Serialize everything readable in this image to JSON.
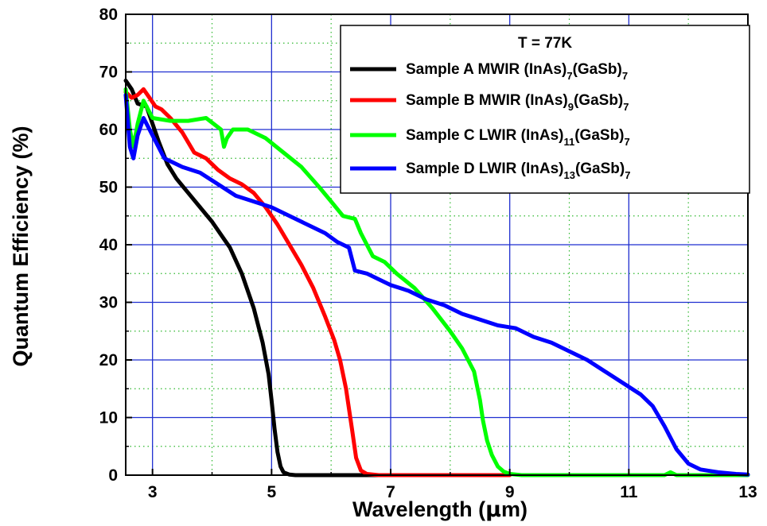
{
  "chart_data": {
    "type": "line",
    "xlabel_main": "Wavelength (",
    "xlabel_mu": "μ",
    "xlabel_end": "m)",
    "ylabel": "Quantum Efficiency (%)",
    "xlim": [
      2.55,
      13.0
    ],
    "ylim": [
      0,
      80
    ],
    "x_ticks": [
      3,
      5,
      7,
      9,
      11,
      13
    ],
    "x_tick_labels": [
      "3",
      "5",
      "7",
      "9",
      "11",
      "13"
    ],
    "y_ticks": [
      0,
      10,
      20,
      30,
      40,
      50,
      60,
      70,
      80
    ],
    "y_tick_labels": [
      "0",
      "10",
      "20",
      "30",
      "40",
      "50",
      "60",
      "70",
      "80"
    ],
    "x_major_grid": [
      3,
      5,
      7,
      9,
      11
    ],
    "x_minor_grid": [
      4,
      6,
      8,
      10,
      12
    ],
    "y_major_grid": [
      10,
      20,
      30,
      40,
      50,
      60,
      70
    ],
    "y_minor_grid": [
      5,
      15,
      25,
      35,
      45,
      55,
      65,
      75
    ],
    "grid_major_color": "#1f2fd0",
    "grid_minor_color": "#2fb82f",
    "legend": {
      "placement": "top-right",
      "title": "T = 77K",
      "entries": [
        {
          "prefix": "Sample A MWIR (InAs)",
          "sub1": "7",
          "mid": "(GaSb)",
          "sub2": "7"
        },
        {
          "prefix": "Sample B MWIR (InAs)",
          "sub1": "9",
          "mid": "(GaSb)",
          "sub2": "7"
        },
        {
          "prefix": "Sample C LWIR (InAs)",
          "sub1": "11",
          "mid": "(GaSb)",
          "sub2": "7"
        },
        {
          "prefix": "Sample D LWIR (InAs)",
          "sub1": "13",
          "mid": "(GaSb)",
          "sub2": "7"
        }
      ]
    },
    "series": [
      {
        "name": "Sample A MWIR (InAs)7(GaSb)7",
        "color": "#000000",
        "x": [
          2.55,
          2.65,
          2.75,
          2.9,
          3.0,
          3.1,
          3.25,
          3.4,
          3.6,
          3.8,
          4.0,
          4.2,
          4.3,
          4.5,
          4.7,
          4.85,
          4.95,
          5.0,
          5.05,
          5.1,
          5.15,
          5.2,
          5.3,
          5.4,
          5.6,
          6.0,
          6.5,
          7.0
        ],
        "y": [
          68.5,
          67,
          64.5,
          64,
          61,
          58,
          54,
          51.5,
          49,
          46.5,
          44,
          41,
          39.5,
          35,
          29,
          23,
          17.5,
          13,
          8,
          4,
          1.5,
          0.5,
          0.1,
          0,
          0,
          0,
          0,
          0
        ]
      },
      {
        "name": "Sample B MWIR (InAs)9(GaSb)7",
        "color": "#ff0000",
        "x": [
          2.55,
          2.65,
          2.75,
          2.85,
          2.95,
          3.05,
          3.15,
          3.3,
          3.5,
          3.7,
          3.9,
          4.1,
          4.3,
          4.5,
          4.7,
          4.9,
          5.1,
          5.3,
          5.5,
          5.7,
          5.9,
          6.05,
          6.15,
          6.25,
          6.35,
          6.42,
          6.5,
          6.6,
          6.8,
          7.0,
          8.0,
          9.0
        ],
        "y": [
          66.5,
          65.5,
          66,
          67,
          65.5,
          64,
          63.5,
          62,
          59.5,
          56,
          55,
          53,
          51.5,
          50.5,
          49,
          46.5,
          43.5,
          40,
          36.5,
          32.5,
          27.5,
          23.5,
          20,
          15,
          8,
          3,
          0.8,
          0.2,
          0,
          0,
          0,
          0
        ]
      },
      {
        "name": "Sample C LWIR (InAs)11(GaSb)7",
        "color": "#00ff00",
        "x": [
          2.55,
          2.62,
          2.68,
          2.75,
          2.85,
          3.0,
          3.3,
          3.6,
          3.9,
          4.15,
          4.2,
          4.25,
          4.35,
          4.6,
          4.9,
          5.2,
          5.5,
          5.8,
          6.0,
          6.2,
          6.4,
          6.5,
          6.7,
          6.9,
          7.1,
          7.4,
          7.7,
          8.0,
          8.2,
          8.4,
          8.5,
          8.55,
          8.62,
          8.7,
          8.8,
          8.9,
          9.0,
          9.2,
          9.5,
          10.0,
          11.0,
          11.6,
          11.7,
          11.8,
          12.0,
          13.0
        ],
        "y": [
          67,
          60,
          57,
          61,
          65,
          62,
          61.5,
          61.5,
          62,
          60,
          57,
          58.5,
          60,
          60,
          58.5,
          56,
          53.5,
          50,
          47.5,
          45,
          44.5,
          42,
          38,
          37,
          35,
          32.5,
          29,
          25,
          22,
          18,
          13,
          9.5,
          6,
          3.5,
          1.5,
          0.6,
          0.2,
          0,
          0,
          0,
          0,
          0,
          0.5,
          0,
          0,
          0
        ]
      },
      {
        "name": "Sample D LWIR (InAs)13(GaSb)7",
        "color": "#0000ff",
        "x": [
          2.55,
          2.62,
          2.68,
          2.75,
          2.85,
          3.0,
          3.2,
          3.5,
          3.8,
          4.1,
          4.4,
          4.7,
          5.0,
          5.3,
          5.6,
          5.9,
          6.1,
          6.3,
          6.4,
          6.6,
          6.8,
          7.0,
          7.3,
          7.6,
          7.9,
          8.2,
          8.5,
          8.8,
          9.1,
          9.4,
          9.7,
          10.0,
          10.3,
          10.6,
          10.9,
          11.2,
          11.4,
          11.6,
          11.8,
          12.0,
          12.2,
          12.5,
          12.8,
          13.0
        ],
        "y": [
          66,
          57,
          55,
          59,
          62,
          59,
          55,
          53.5,
          52.5,
          50.5,
          48.5,
          47.5,
          46.5,
          45,
          43.5,
          42,
          40.5,
          39.5,
          35.5,
          35,
          34,
          33,
          32,
          30.5,
          29.5,
          28,
          27,
          26,
          25.5,
          24,
          23,
          21.5,
          20,
          18,
          16,
          14,
          12,
          8.5,
          4.5,
          2,
          1,
          0.5,
          0.2,
          0.1
        ]
      }
    ]
  }
}
